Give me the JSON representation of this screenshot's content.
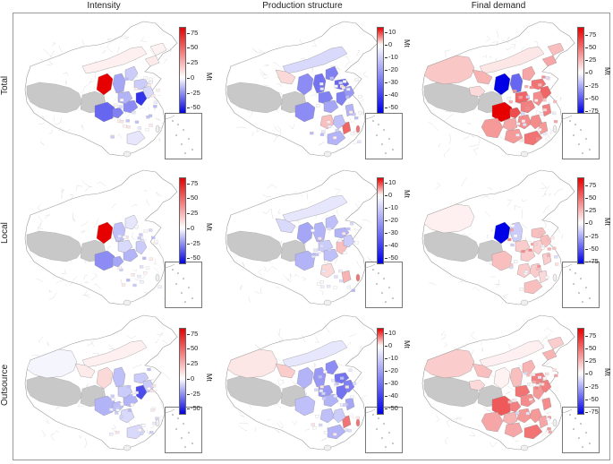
{
  "figure": {
    "columns": [
      "Intensity",
      "Production structure",
      "Final demand"
    ],
    "rows": [
      "Total",
      "Local",
      "Outsource"
    ],
    "unit": "Mt",
    "scales": {
      "wide": {
        "ticks": [
          "75",
          "50",
          "25",
          "0",
          "-25",
          "-50"
        ],
        "range": [
          -60,
          85
        ]
      },
      "narrow": {
        "ticks": [
          "10",
          "0",
          "-10",
          "-20",
          "-30",
          "-40",
          "-50"
        ],
        "range": [
          -55,
          14
        ]
      },
      "demand": {
        "ticks": [
          "75",
          "50",
          "25",
          "0",
          "-25",
          "-50",
          "-75"
        ],
        "range": [
          -80,
          90
        ]
      }
    },
    "panels": [
      {
        "row": "Total",
        "column": "Intensity",
        "scale": "wide",
        "pattern": "intensity-total"
      },
      {
        "row": "Total",
        "column": "Production structure",
        "scale": "narrow",
        "pattern": "structure-total"
      },
      {
        "row": "Total",
        "column": "Final demand",
        "scale": "demand",
        "pattern": "demand-total"
      },
      {
        "row": "Local",
        "column": "Intensity",
        "scale": "wide",
        "pattern": "intensity-local"
      },
      {
        "row": "Local",
        "column": "Production structure",
        "scale": "narrow",
        "pattern": "structure-local"
      },
      {
        "row": "Local",
        "column": "Final demand",
        "scale": "demand",
        "pattern": "demand-local"
      },
      {
        "row": "Outsource",
        "column": "Intensity",
        "scale": "wide",
        "pattern": "intensity-outsource"
      },
      {
        "row": "Outsource",
        "column": "Production structure",
        "scale": "narrow",
        "pattern": "structure-outsource"
      },
      {
        "row": "Outsource",
        "column": "Final demand",
        "scale": "demand",
        "pattern": "demand-outsource"
      }
    ],
    "colors": {
      "positive": "#e60000",
      "negative": "#0000e6",
      "neutral": "#ffffff",
      "no_data": "#c8c8c8",
      "border": "#9a9a9a"
    }
  }
}
